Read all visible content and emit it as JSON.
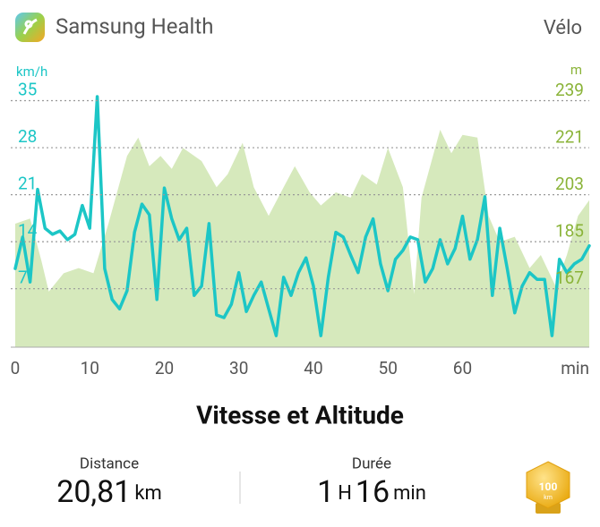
{
  "header": {
    "app": "Samsung Health",
    "activity": "Vélo"
  },
  "chart_data": {
    "type": "line",
    "title": "Vitesse et Altitude",
    "x_label": "min",
    "y_label": "km/h",
    "y2_label": "m",
    "xlim": [
      0,
      77
    ],
    "xticks": [
      0,
      10,
      20,
      30,
      40,
      50,
      60
    ],
    "ylim": [
      -1.7,
      40
    ],
    "yticks": [
      7,
      14,
      21,
      28,
      35
    ],
    "y2lim": [
      144.7,
      252
    ],
    "y2ticks": [
      167,
      185,
      203,
      221,
      239
    ],
    "grid": true,
    "series": [
      {
        "name": "Altitude",
        "axis": "y2",
        "style": "area",
        "color": "#d6e9bc",
        "x": [
          0,
          2,
          3.5,
          4.5,
          6.5,
          8.5,
          10.5,
          12.5,
          15,
          16.5,
          18,
          19.5,
          21,
          22.5,
          25,
          27,
          28.5,
          30.5,
          32,
          34,
          36,
          37.5,
          39.5,
          41,
          43,
          45,
          46.5,
          48.5,
          50,
          52,
          53.5,
          54.5,
          57,
          58.5,
          60,
          62,
          63.5,
          65,
          67,
          69,
          70.5,
          72.5,
          74,
          75.5,
          77
        ],
        "values": [
          192,
          194,
          178,
          166,
          173,
          175,
          173,
          192,
          218,
          225,
          214,
          218,
          213,
          221,
          216,
          206,
          211,
          223,
          206,
          195,
          206,
          214,
          204,
          199,
          204,
          202,
          211,
          207,
          221,
          206,
          165,
          202,
          228,
          219,
          226,
          225,
          195,
          185,
          187,
          175,
          180,
          168,
          180,
          195,
          201
        ]
      },
      {
        "name": "Vitesse",
        "axis": "y",
        "style": "line",
        "color": "#1cc6c6",
        "x": [
          0,
          1,
          2,
          3,
          4,
          5,
          6,
          7,
          8,
          9,
          10,
          11,
          12,
          13,
          14,
          15,
          16,
          17,
          18,
          19,
          20,
          21,
          22,
          23,
          24,
          25,
          26,
          27,
          28,
          29,
          30,
          31,
          32,
          33,
          34,
          35,
          36,
          37,
          38,
          39,
          40,
          41,
          42,
          43,
          44,
          45,
          46,
          47,
          48,
          49,
          50,
          51,
          52,
          53,
          54,
          55,
          56,
          57,
          58,
          59,
          60,
          61,
          62,
          63,
          64,
          65,
          66,
          67,
          68,
          69,
          70,
          71,
          72,
          73,
          74,
          75,
          76,
          77
        ],
        "values": [
          10,
          14.7,
          8,
          21.8,
          16,
          15.1,
          15.6,
          14.3,
          15.1,
          19.4,
          16,
          35.6,
          10,
          5.4,
          4,
          6.7,
          15.4,
          19.6,
          18,
          5.4,
          22,
          17.4,
          14.3,
          16,
          6,
          7.4,
          16.7,
          3.1,
          2.7,
          4.7,
          9.4,
          3.6,
          6,
          8,
          4,
          0,
          8.7,
          6,
          9.4,
          11.6,
          7.4,
          0,
          8.7,
          15.4,
          14.7,
          12,
          9.4,
          14.7,
          17.4,
          10.7,
          6.7,
          11.4,
          12.7,
          14.7,
          14.3,
          8,
          10,
          14.3,
          10.7,
          13,
          17.8,
          11.4,
          14.3,
          20.7,
          6,
          16,
          10,
          3.4,
          7.4,
          9.4,
          8.4,
          8.4,
          0,
          11.4,
          9.4,
          10.7,
          11.4,
          13.4
        ]
      }
    ]
  },
  "stats": {
    "distance": {
      "label": "Distance",
      "value": "20,81",
      "unit": "km"
    },
    "duration": {
      "label": "Durée",
      "hours": "1",
      "hours_unit": "H",
      "minutes": "16",
      "minutes_unit": "min"
    },
    "badge": {
      "value": "100",
      "unit": "km"
    }
  }
}
